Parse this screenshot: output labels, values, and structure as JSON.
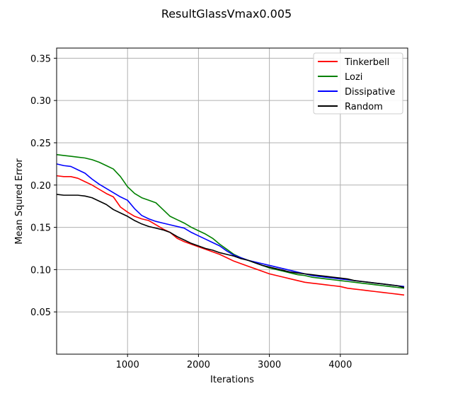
{
  "chart_data": {
    "type": "line",
    "title": "ResultGlassVmax0.005",
    "xlabel": "Iterations",
    "ylabel": "Mean Squred Error",
    "xlim": [
      0,
      4950
    ],
    "ylim": [
      0.0,
      0.362
    ],
    "xticks": [
      1000,
      2000,
      3000,
      4000
    ],
    "xtick_labels": [
      "1000",
      "2000",
      "3000",
      "4000"
    ],
    "yticks": [
      0.05,
      0.1,
      0.15,
      0.2,
      0.25,
      0.3,
      0.35
    ],
    "ytick_labels": [
      "0.05",
      "0.10",
      "0.15",
      "0.20",
      "0.25",
      "0.30",
      "0.35"
    ],
    "grid": true,
    "legend_position": "top-right",
    "x": [
      0,
      100,
      200,
      300,
      400,
      500,
      600,
      700,
      800,
      900,
      1000,
      1100,
      1200,
      1300,
      1400,
      1500,
      1600,
      1700,
      1800,
      1900,
      2000,
      2100,
      2200,
      2300,
      2400,
      2500,
      2600,
      2700,
      2800,
      2900,
      3000,
      3100,
      3200,
      3300,
      3400,
      3500,
      3600,
      3700,
      3800,
      3900,
      4000,
      4100,
      4200,
      4300,
      4400,
      4500,
      4600,
      4700,
      4800,
      4900
    ],
    "series": [
      {
        "name": "Tinkerbell",
        "color": "#ff0000",
        "values": [
          0.211,
          0.21,
          0.21,
          0.208,
          0.204,
          0.2,
          0.195,
          0.19,
          0.186,
          0.174,
          0.168,
          0.163,
          0.16,
          0.158,
          0.153,
          0.148,
          0.144,
          0.137,
          0.133,
          0.13,
          0.127,
          0.124,
          0.121,
          0.118,
          0.114,
          0.11,
          0.107,
          0.104,
          0.101,
          0.098,
          0.095,
          0.093,
          0.091,
          0.089,
          0.087,
          0.085,
          0.084,
          0.083,
          0.082,
          0.081,
          0.08,
          0.078,
          0.077,
          0.076,
          0.075,
          0.074,
          0.073,
          0.072,
          0.071,
          0.07
        ]
      },
      {
        "name": "Lozi",
        "color": "#008000",
        "values": [
          0.236,
          0.235,
          0.234,
          0.233,
          0.232,
          0.23,
          0.227,
          0.223,
          0.219,
          0.21,
          0.198,
          0.19,
          0.185,
          0.182,
          0.179,
          0.171,
          0.163,
          0.159,
          0.155,
          0.15,
          0.146,
          0.142,
          0.137,
          0.13,
          0.124,
          0.118,
          0.114,
          0.111,
          0.108,
          0.105,
          0.102,
          0.1,
          0.098,
          0.096,
          0.094,
          0.093,
          0.091,
          0.09,
          0.089,
          0.088,
          0.087,
          0.086,
          0.085,
          0.084,
          0.083,
          0.082,
          0.081,
          0.08,
          0.079,
          0.078
        ]
      },
      {
        "name": "Dissipative",
        "color": "#0000ff",
        "values": [
          0.225,
          0.223,
          0.222,
          0.218,
          0.214,
          0.207,
          0.201,
          0.196,
          0.191,
          0.186,
          0.182,
          0.172,
          0.164,
          0.16,
          0.157,
          0.155,
          0.153,
          0.151,
          0.149,
          0.144,
          0.14,
          0.136,
          0.132,
          0.128,
          0.122,
          0.117,
          0.114,
          0.111,
          0.109,
          0.107,
          0.105,
          0.103,
          0.101,
          0.099,
          0.097,
          0.095,
          0.093,
          0.092,
          0.091,
          0.09,
          0.089,
          0.088,
          0.087,
          0.086,
          0.085,
          0.084,
          0.083,
          0.082,
          0.081,
          0.08
        ]
      },
      {
        "name": "Random",
        "color": "#000000",
        "values": [
          0.189,
          0.188,
          0.188,
          0.188,
          0.187,
          0.185,
          0.181,
          0.177,
          0.171,
          0.167,
          0.163,
          0.158,
          0.154,
          0.151,
          0.149,
          0.147,
          0.144,
          0.139,
          0.135,
          0.131,
          0.128,
          0.125,
          0.123,
          0.12,
          0.118,
          0.116,
          0.113,
          0.111,
          0.108,
          0.105,
          0.103,
          0.101,
          0.099,
          0.097,
          0.096,
          0.095,
          0.094,
          0.093,
          0.092,
          0.091,
          0.09,
          0.089,
          0.087,
          0.086,
          0.085,
          0.084,
          0.083,
          0.082,
          0.081,
          0.079
        ]
      }
    ]
  }
}
